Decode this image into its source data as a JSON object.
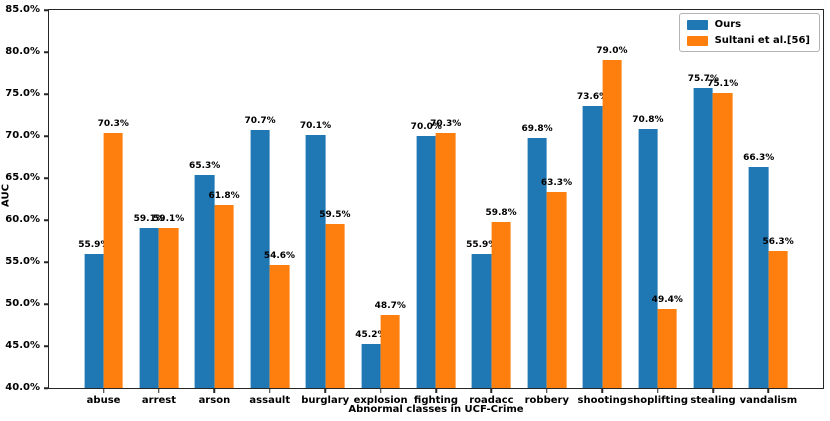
{
  "chart_data": {
    "type": "bar",
    "title": "",
    "xlabel": "Abnormal classes in UCF-Crime",
    "ylabel": "AUC",
    "ylim": [
      40,
      85
    ],
    "ytick_step": 5,
    "ytick_format": "percent-1dp",
    "bar_label_format": "percent-1dp",
    "grid": false,
    "legend_position": "top-right",
    "categories": [
      "abuse",
      "arrest",
      "arson",
      "assault",
      "burglary",
      "explosion",
      "fighting",
      "roadacc",
      "robbery",
      "shooting",
      "shoplifting",
      "stealing",
      "vandalism"
    ],
    "series": [
      {
        "name": "Ours",
        "color": "#1f77b4",
        "values": [
          55.9,
          59.1,
          65.3,
          70.7,
          70.1,
          45.2,
          70.0,
          55.9,
          69.8,
          73.6,
          70.8,
          75.7,
          66.3
        ]
      },
      {
        "name": "Sultani et al.[56]",
        "color": "#ff7f0e",
        "values": [
          70.3,
          59.1,
          61.8,
          54.6,
          59.5,
          48.7,
          70.3,
          59.8,
          63.3,
          79.0,
          49.4,
          75.1,
          56.3
        ]
      }
    ]
  }
}
